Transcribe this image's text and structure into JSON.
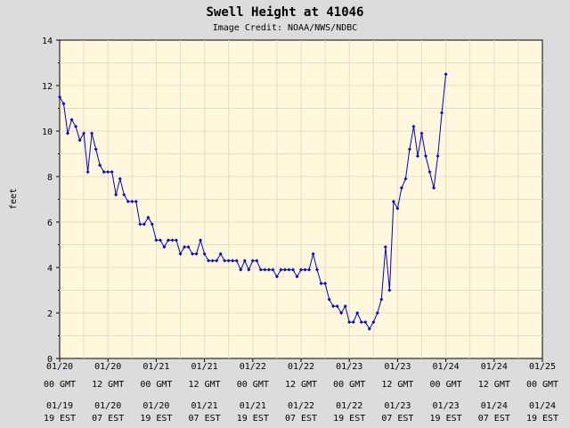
{
  "chart_data": {
    "type": "line",
    "title": "Swell Height at 41046",
    "subtitle": "Image Credit: NOAA/NWS/NDBC",
    "ylabel": "feet",
    "ylim": [
      0,
      14
    ],
    "yticks": [
      0,
      2,
      4,
      6,
      8,
      10,
      12,
      14
    ],
    "xlim_hours": [
      0,
      120
    ],
    "xtick_labels": [
      {
        "gmt_date": "01/20",
        "gmt_time": "00 GMT",
        "est_date": "01/19",
        "est_time": "19 EST"
      },
      {
        "gmt_date": "01/20",
        "gmt_time": "12 GMT",
        "est_date": "01/20",
        "est_time": "07 EST"
      },
      {
        "gmt_date": "01/21",
        "gmt_time": "00 GMT",
        "est_date": "01/20",
        "est_time": "19 EST"
      },
      {
        "gmt_date": "01/21",
        "gmt_time": "12 GMT",
        "est_date": "01/21",
        "est_time": "07 EST"
      },
      {
        "gmt_date": "01/22",
        "gmt_time": "00 GMT",
        "est_date": "01/21",
        "est_time": "19 EST"
      },
      {
        "gmt_date": "01/22",
        "gmt_time": "12 GMT",
        "est_date": "01/22",
        "est_time": "07 EST"
      },
      {
        "gmt_date": "01/23",
        "gmt_time": "00 GMT",
        "est_date": "01/22",
        "est_time": "19 EST"
      },
      {
        "gmt_date": "01/23",
        "gmt_time": "12 GMT",
        "est_date": "01/23",
        "est_time": "07 EST"
      },
      {
        "gmt_date": "01/24",
        "gmt_time": "00 GMT",
        "est_date": "01/23",
        "est_time": "19 EST"
      },
      {
        "gmt_date": "01/24",
        "gmt_time": "12 GMT",
        "est_date": "01/24",
        "est_time": "07 EST"
      },
      {
        "gmt_date": "01/25",
        "gmt_time": "00 GMT",
        "est_date": "01/24",
        "est_time": "19 EST"
      }
    ],
    "grid": true,
    "colors": {
      "line": "#0000cc",
      "plot_bg": "#fff8dc",
      "page_bg": "#dcdcdc",
      "grid": "#e6dcc8"
    },
    "series": [
      {
        "name": "",
        "x_hours": [
          0,
          1,
          2,
          3,
          4,
          5,
          6,
          7,
          8,
          9,
          10,
          11,
          12,
          13,
          14,
          15,
          16,
          17,
          18,
          19,
          20,
          21,
          22,
          23,
          24,
          25,
          26,
          27,
          28,
          29,
          30,
          31,
          32,
          33,
          34,
          35,
          36,
          37,
          38,
          39,
          40,
          41,
          42,
          43,
          44,
          45,
          46,
          47,
          48,
          49,
          50,
          51,
          52,
          53,
          54,
          55,
          56,
          57,
          58,
          59,
          60,
          61,
          62,
          63,
          64,
          65,
          66,
          67,
          68,
          69,
          70,
          71,
          72,
          73,
          74,
          75,
          76,
          77,
          78,
          79,
          80,
          81,
          82,
          83,
          84,
          85,
          86,
          87,
          88,
          89,
          90,
          91,
          92,
          93,
          94,
          95,
          96
        ],
        "values": [
          11.5,
          11.2,
          9.9,
          10.5,
          10.2,
          9.6,
          9.9,
          8.2,
          9.9,
          9.2,
          8.5,
          8.2,
          8.2,
          8.2,
          7.2,
          7.9,
          7.2,
          6.9,
          6.9,
          6.9,
          5.9,
          5.9,
          6.2,
          5.9,
          5.2,
          5.2,
          4.9,
          5.2,
          5.2,
          5.2,
          4.6,
          4.9,
          4.9,
          4.6,
          4.6,
          5.2,
          4.6,
          4.3,
          4.3,
          4.3,
          4.6,
          4.3,
          4.3,
          4.3,
          4.3,
          3.9,
          4.3,
          3.9,
          4.3,
          4.3,
          3.9,
          3.9,
          3.9,
          3.9,
          3.6,
          3.9,
          3.9,
          3.9,
          3.9,
          3.6,
          3.9,
          3.9,
          3.9,
          4.6,
          3.9,
          3.3,
          3.3,
          2.6,
          2.3,
          2.3,
          2.0,
          2.3,
          1.6,
          1.6,
          2.0,
          1.6,
          1.6,
          1.3,
          1.6,
          2.0,
          2.6,
          4.9,
          3.0,
          6.9,
          6.6,
          7.5,
          7.9,
          9.2,
          10.2,
          8.9,
          9.9,
          8.9,
          8.2,
          7.5,
          8.9,
          10.8,
          12.5
        ]
      }
    ]
  }
}
